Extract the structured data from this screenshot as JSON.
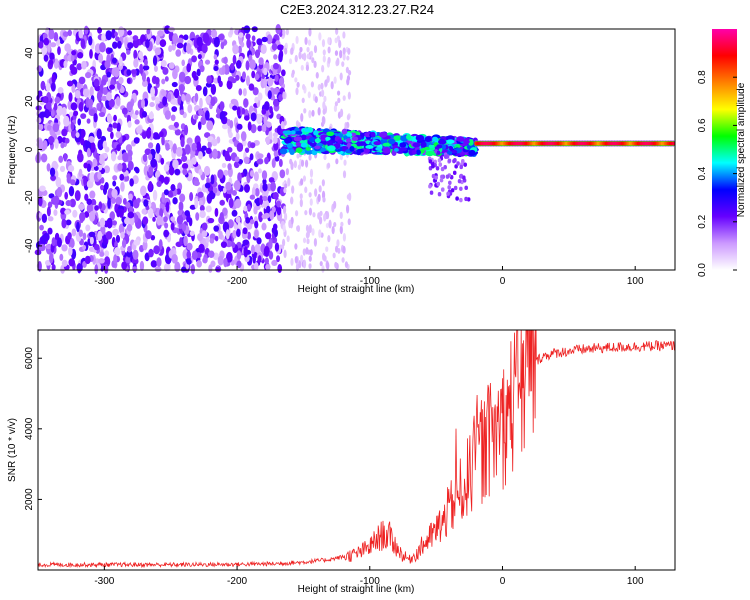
{
  "title": "C2E3.2024.312.23.27.R24",
  "chart_data": [
    {
      "type": "heatmap",
      "xlabel": "Height of straight line (km)",
      "ylabel": "Frequency (Hz)",
      "xlim": [
        -350,
        130
      ],
      "ylim": [
        -50,
        50
      ],
      "xticks": [
        -300,
        -200,
        -100,
        0,
        100
      ],
      "yticks": [
        -40,
        -20,
        0,
        20,
        40
      ],
      "colorbar": {
        "label": "Normalized spectral amplitude",
        "range": [
          0,
          1
        ],
        "ticks": [
          "0.0",
          "0.2",
          "0.4",
          "0.6",
          "0.8"
        ],
        "colormap": [
          "#ffffff",
          "#cc99ff",
          "#6600ff",
          "#0000ff",
          "#00ffff",
          "#00ff00",
          "#ffff00",
          "#ff8000",
          "#ff0000",
          "#ff00aa"
        ]
      },
      "regions": [
        {
          "x_range": [
            -350,
            -165
          ],
          "description": "scattered noise, amplitude 0.1-0.25 across all frequencies"
        },
        {
          "x_range": [
            -165,
            -115
          ],
          "description": "sparse faint noise, amplitude ~0.05"
        },
        {
          "x_range": [
            -165,
            -20
          ],
          "center_freq_start": 4,
          "center_freq_end": 1,
          "amplitude": [
            0.2,
            0.5
          ]
        },
        {
          "x_range": [
            -20,
            130
          ],
          "center_freq": 2.5,
          "amplitude": [
            0.7,
            0.95
          ]
        }
      ]
    },
    {
      "type": "line",
      "xlabel": "Height of straight line (km)",
      "ylabel": "SNR (10 * v/v)",
      "xlim": [
        -350,
        130
      ],
      "ylim": [
        0,
        6800
      ],
      "xticks": [
        -300,
        -200,
        -100,
        0,
        100
      ],
      "yticks": [
        2000,
        4000,
        6000
      ],
      "series": [
        {
          "color": "#ee2222",
          "x": [
            -350,
            -300,
            -250,
            -200,
            -170,
            -150,
            -130,
            -110,
            -100,
            -95,
            -90,
            -85,
            -80,
            -75,
            -70,
            -65,
            -60,
            -55,
            -50,
            -45,
            -40,
            -35,
            -30,
            -25,
            -20,
            -15,
            -10,
            -5,
            0,
            5,
            10,
            15,
            20,
            25,
            30,
            40,
            50,
            60,
            70,
            80,
            90,
            100,
            110,
            120,
            130
          ],
          "y": [
            150,
            150,
            150,
            160,
            180,
            220,
            300,
            450,
            650,
            850,
            1000,
            950,
            650,
            400,
            300,
            450,
            700,
            900,
            1100,
            1400,
            1700,
            2000,
            2300,
            2700,
            3100,
            3400,
            3700,
            3900,
            4100,
            4500,
            5000,
            5400,
            5700,
            5900,
            6050,
            6150,
            6200,
            6250,
            6280,
            6300,
            6320,
            6330,
            6340,
            6350,
            6360
          ]
        }
      ]
    }
  ]
}
